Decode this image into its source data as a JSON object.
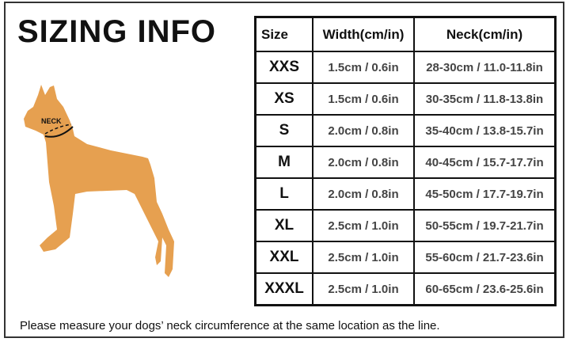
{
  "title": "SIZING INFO",
  "neck_label": "NECK",
  "dog_color": "#E6A050",
  "table": {
    "headers": [
      "Size",
      "Width(cm/in)",
      "Neck(cm/in)"
    ],
    "rows": [
      {
        "size": "XXS",
        "width": "1.5cm / 0.6in",
        "neck": "28-30cm / 11.0-11.8in"
      },
      {
        "size": "XS",
        "width": "1.5cm / 0.6in",
        "neck": "30-35cm / 11.8-13.8in"
      },
      {
        "size": "S",
        "width": "2.0cm / 0.8in",
        "neck": "35-40cm / 13.8-15.7in"
      },
      {
        "size": "M",
        "width": "2.0cm / 0.8in",
        "neck": "40-45cm / 15.7-17.7in"
      },
      {
        "size": "L",
        "width": "2.0cm / 0.8in",
        "neck": "45-50cm / 17.7-19.7in"
      },
      {
        "size": "XL",
        "width": "2.5cm / 1.0in",
        "neck": "50-55cm / 19.7-21.7in"
      },
      {
        "size": "XXL",
        "width": "2.5cm / 1.0in",
        "neck": "55-60cm / 21.7-23.6in"
      },
      {
        "size": "XXXL",
        "width": "2.5cm / 1.0in",
        "neck": "60-65cm / 23.6-25.6in"
      }
    ]
  },
  "footer_note": "Please measure your dogs’  neck circumference at the same location as the line."
}
